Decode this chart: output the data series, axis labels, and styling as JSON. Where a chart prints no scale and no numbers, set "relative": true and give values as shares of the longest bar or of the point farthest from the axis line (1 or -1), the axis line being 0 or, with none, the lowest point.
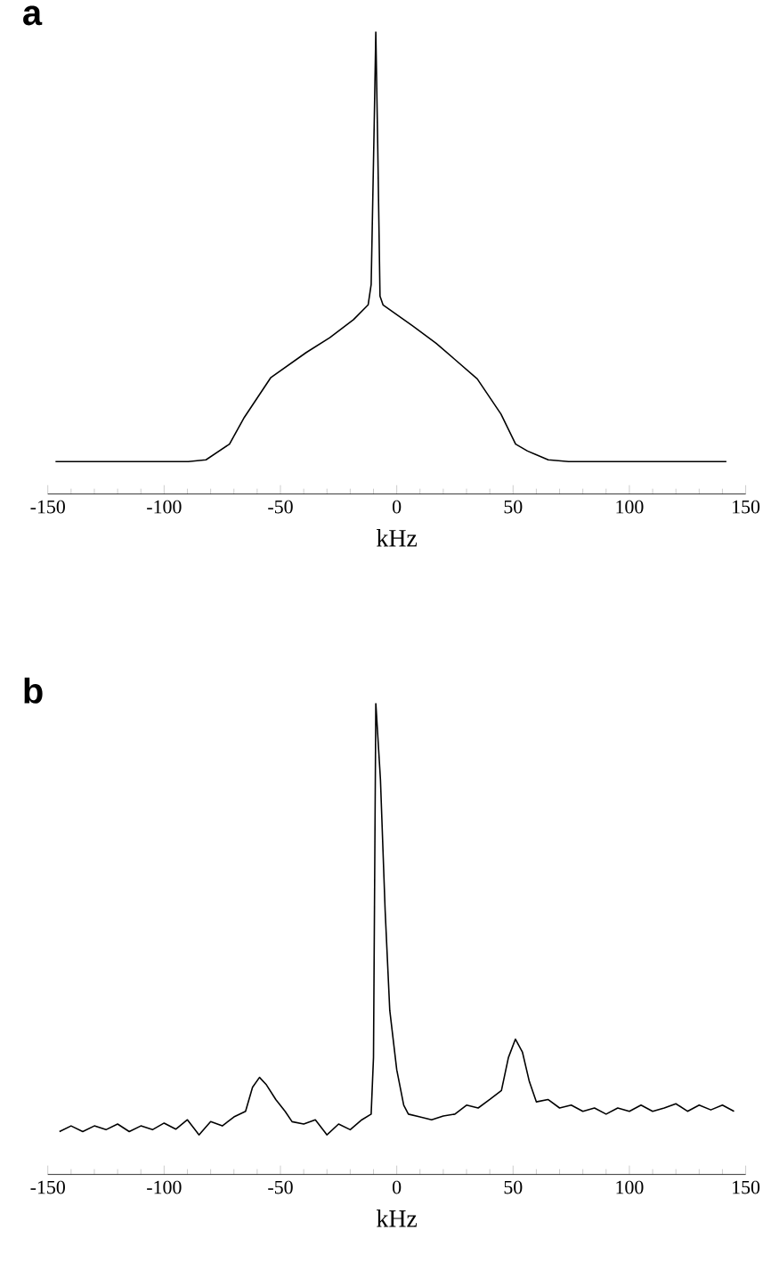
{
  "chart_data": [
    {
      "type": "line",
      "title": "a",
      "xlabel": "kHz",
      "relative": true,
      "xlim": [
        -150,
        150
      ],
      "xticks": [
        -150,
        -100,
        -50,
        0,
        50,
        100,
        150
      ],
      "marker": "none",
      "line_style": "solid",
      "series": [
        {
          "color": "#000000",
          "x": [
            -146.7,
            -89.6,
            -82,
            -71.9,
            -65.5,
            -54.1,
            -38.9,
            -28.8,
            -18.6,
            -12.3,
            -11.0,
            -9.7,
            -9.0,
            -8.2,
            -7.2,
            -5.9,
            6.7,
            16.9,
            24.5,
            34.6,
            44.8,
            51.1,
            56.2,
            65.1,
            73.9,
            141.7
          ],
          "values": [
            0.07,
            0.07,
            0.074,
            0.108,
            0.166,
            0.252,
            0.306,
            0.338,
            0.377,
            0.409,
            0.453,
            0.798,
            1,
            0.76,
            0.428,
            0.409,
            0.364,
            0.326,
            0.293,
            0.249,
            0.173,
            0.108,
            0.093,
            0.074,
            0.07,
            0.07
          ]
        }
      ]
    },
    {
      "type": "line",
      "title": "b",
      "xlabel": "kHz",
      "relative": true,
      "xlim": [
        -150,
        150
      ],
      "xticks": [
        -150,
        -100,
        -50,
        0,
        50,
        100,
        150
      ],
      "marker": "none",
      "line_style": "solid",
      "series": [
        {
          "color": "#000000",
          "x": [
            -145,
            -140,
            -135,
            -130,
            -125,
            -120,
            -115,
            -110,
            -105,
            -100,
            -95,
            -90,
            -85,
            -80,
            -75,
            -70,
            -65,
            -62,
            -59,
            -56,
            -52,
            -48,
            -45,
            -40,
            -35,
            -30,
            -25,
            -20,
            -15,
            -11,
            -10,
            -9,
            -7,
            -5,
            -3,
            0,
            3,
            5,
            10,
            15,
            20,
            25,
            30,
            35,
            40,
            45,
            48,
            51,
            54,
            57,
            60,
            65,
            70,
            75,
            80,
            85,
            90,
            95,
            100,
            105,
            110,
            115,
            120,
            125,
            130,
            135,
            140,
            145
          ],
          "values": [
            0.091,
            0.103,
            0.091,
            0.103,
            0.095,
            0.107,
            0.091,
            0.103,
            0.095,
            0.109,
            0.096,
            0.116,
            0.084,
            0.112,
            0.103,
            0.122,
            0.134,
            0.185,
            0.206,
            0.19,
            0.159,
            0.134,
            0.112,
            0.107,
            0.116,
            0.084,
            0.107,
            0.095,
            0.116,
            0.128,
            0.248,
            1,
            0.837,
            0.561,
            0.348,
            0.222,
            0.147,
            0.128,
            0.122,
            0.116,
            0.124,
            0.128,
            0.147,
            0.141,
            0.159,
            0.178,
            0.248,
            0.287,
            0.26,
            0.197,
            0.154,
            0.159,
            0.141,
            0.147,
            0.134,
            0.141,
            0.128,
            0.141,
            0.134,
            0.147,
            0.134,
            0.141,
            0.15,
            0.134,
            0.147,
            0.137,
            0.147,
            0.134
          ]
        }
      ]
    }
  ]
}
